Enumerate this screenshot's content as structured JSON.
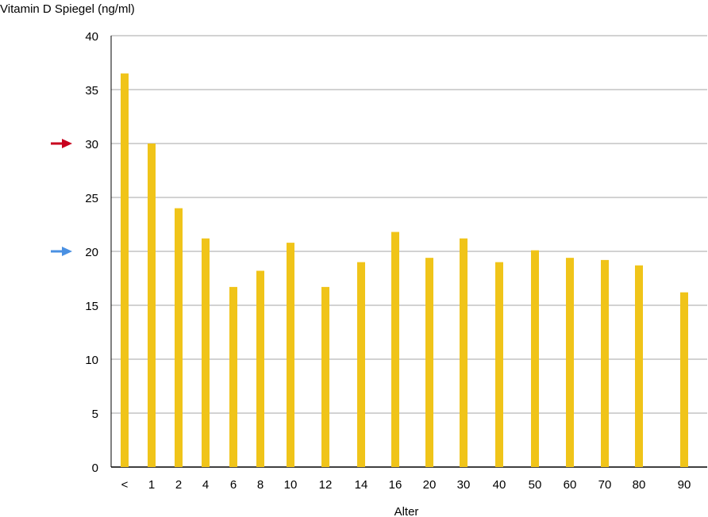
{
  "chart_data": {
    "type": "bar",
    "ylabel": "Vitamin D Spiegel (ng/ml)",
    "xlabel": "Alter",
    "ylim": [
      0,
      40
    ],
    "yticks": [
      0,
      5,
      10,
      15,
      20,
      25,
      30,
      35,
      40
    ],
    "grid": true,
    "categories": [
      "<",
      "1",
      "2",
      "4",
      "6",
      "8",
      "10",
      "12",
      "14",
      "16",
      "20",
      "30",
      "40",
      "50",
      "60",
      "70",
      "80",
      "90"
    ],
    "values": [
      36.5,
      30,
      24,
      21.2,
      16.7,
      18.2,
      20.8,
      16.7,
      19,
      21.8,
      19.4,
      21.2,
      19,
      20.1,
      19.4,
      19.2,
      18.7,
      16.2
    ],
    "bar_color": "#f0c419",
    "markers": [
      {
        "name": "red-arrow",
        "y": 30,
        "color": "#c8001e"
      },
      {
        "name": "blue-arrow",
        "y": 20,
        "color": "#4a90e2"
      }
    ]
  }
}
